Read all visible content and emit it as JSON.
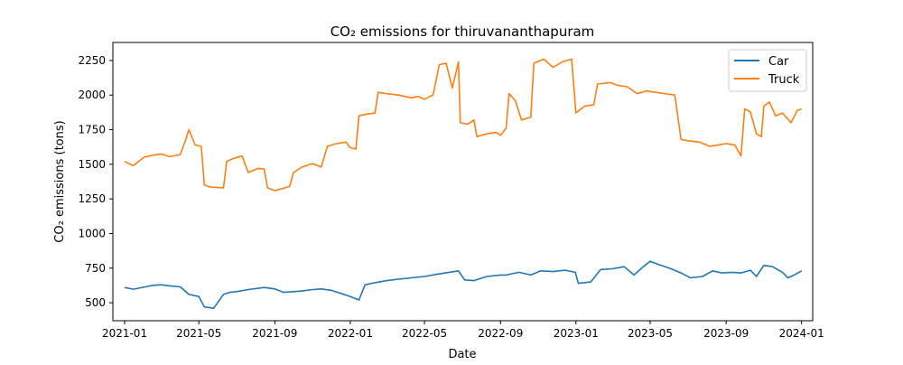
{
  "chart_data": {
    "type": "line",
    "title": "CO₂ emissions for thiruvananthapuram",
    "xlabel": "Date",
    "ylabel": "CO₂ emissions (tons)",
    "xlim": [
      "2020-12-13",
      "2024-01-19"
    ],
    "ylim": [
      370,
      2380
    ],
    "x_ticks": [
      "2021-01",
      "2021-05",
      "2021-09",
      "2022-01",
      "2022-05",
      "2022-09",
      "2023-01",
      "2023-05",
      "2023-09",
      "2024-01"
    ],
    "x_tick_dates": [
      "2021-01-01",
      "2021-05-01",
      "2021-09-01",
      "2022-01-01",
      "2022-05-01",
      "2022-09-01",
      "2023-01-01",
      "2023-05-01",
      "2023-09-01",
      "2024-01-01"
    ],
    "y_ticks": [
      500,
      750,
      1000,
      1250,
      1500,
      1750,
      2000,
      2250
    ],
    "legend_position": "top-right",
    "grid": false,
    "series": [
      {
        "name": "Car",
        "color": "#1f77b4",
        "points": [
          [
            "2021-01-01",
            610
          ],
          [
            "2021-01-15",
            598
          ],
          [
            "2021-02-01",
            612
          ],
          [
            "2021-02-15",
            625
          ],
          [
            "2021-03-01",
            630
          ],
          [
            "2021-03-15",
            622
          ],
          [
            "2021-04-01",
            615
          ],
          [
            "2021-04-15",
            560
          ],
          [
            "2021-05-01",
            545
          ],
          [
            "2021-05-10",
            470
          ],
          [
            "2021-05-25",
            460
          ],
          [
            "2021-06-10",
            560
          ],
          [
            "2021-06-20",
            575
          ],
          [
            "2021-07-01",
            580
          ],
          [
            "2021-07-20",
            595
          ],
          [
            "2021-08-15",
            610
          ],
          [
            "2021-09-01",
            600
          ],
          [
            "2021-09-15",
            575
          ],
          [
            "2021-10-01",
            580
          ],
          [
            "2021-10-15",
            585
          ],
          [
            "2021-11-01",
            595
          ],
          [
            "2021-11-15",
            600
          ],
          [
            "2021-12-01",
            590
          ],
          [
            "2021-12-15",
            570
          ],
          [
            "2022-01-01",
            545
          ],
          [
            "2022-01-15",
            520
          ],
          [
            "2022-01-25",
            630
          ],
          [
            "2022-02-10",
            645
          ],
          [
            "2022-03-01",
            660
          ],
          [
            "2022-03-20",
            670
          ],
          [
            "2022-04-10",
            680
          ],
          [
            "2022-05-01",
            690
          ],
          [
            "2022-05-20",
            705
          ],
          [
            "2022-06-10",
            720
          ],
          [
            "2022-06-25",
            730
          ],
          [
            "2022-07-05",
            665
          ],
          [
            "2022-07-20",
            660
          ],
          [
            "2022-08-10",
            690
          ],
          [
            "2022-09-01",
            700
          ],
          [
            "2022-09-10",
            700
          ],
          [
            "2022-10-01",
            720
          ],
          [
            "2022-10-20",
            700
          ],
          [
            "2022-11-05",
            730
          ],
          [
            "2022-11-25",
            725
          ],
          [
            "2022-12-15",
            735
          ],
          [
            "2022-12-31",
            720
          ],
          [
            "2023-01-05",
            640
          ],
          [
            "2023-01-25",
            650
          ],
          [
            "2023-02-10",
            740
          ],
          [
            "2023-03-01",
            745
          ],
          [
            "2023-03-20",
            760
          ],
          [
            "2023-04-05",
            700
          ],
          [
            "2023-04-20",
            760
          ],
          [
            "2023-05-01",
            800
          ],
          [
            "2023-05-15",
            775
          ],
          [
            "2023-06-01",
            750
          ],
          [
            "2023-06-20",
            715
          ],
          [
            "2023-07-05",
            680
          ],
          [
            "2023-07-25",
            690
          ],
          [
            "2023-08-10",
            730
          ],
          [
            "2023-08-25",
            715
          ],
          [
            "2023-09-10",
            720
          ],
          [
            "2023-09-25",
            715
          ],
          [
            "2023-10-10",
            735
          ],
          [
            "2023-10-20",
            690
          ],
          [
            "2023-11-01",
            770
          ],
          [
            "2023-11-15",
            760
          ],
          [
            "2023-12-01",
            720
          ],
          [
            "2023-12-10",
            680
          ],
          [
            "2023-12-20",
            700
          ],
          [
            "2024-01-01",
            730
          ]
        ]
      },
      {
        "name": "Truck",
        "color": "#ff7f0e",
        "points": [
          [
            "2021-01-01",
            1520
          ],
          [
            "2021-01-15",
            1490
          ],
          [
            "2021-02-01",
            1550
          ],
          [
            "2021-02-15",
            1565
          ],
          [
            "2021-03-01",
            1575
          ],
          [
            "2021-03-15",
            1555
          ],
          [
            "2021-04-01",
            1570
          ],
          [
            "2021-04-10",
            1680
          ],
          [
            "2021-04-15",
            1750
          ],
          [
            "2021-04-25",
            1640
          ],
          [
            "2021-05-05",
            1630
          ],
          [
            "2021-05-10",
            1350
          ],
          [
            "2021-05-20",
            1335
          ],
          [
            "2021-06-10",
            1330
          ],
          [
            "2021-06-15",
            1520
          ],
          [
            "2021-06-25",
            1540
          ],
          [
            "2021-07-10",
            1560
          ],
          [
            "2021-07-20",
            1440
          ],
          [
            "2021-08-05",
            1470
          ],
          [
            "2021-08-15",
            1465
          ],
          [
            "2021-08-20",
            1330
          ],
          [
            "2021-09-01",
            1310
          ],
          [
            "2021-09-10",
            1320
          ],
          [
            "2021-09-25",
            1340
          ],
          [
            "2021-10-01",
            1440
          ],
          [
            "2021-10-15",
            1480
          ],
          [
            "2021-11-01",
            1505
          ],
          [
            "2021-11-15",
            1480
          ],
          [
            "2021-11-25",
            1630
          ],
          [
            "2021-12-10",
            1650
          ],
          [
            "2021-12-25",
            1660
          ],
          [
            "2022-01-01",
            1620
          ],
          [
            "2022-01-10",
            1610
          ],
          [
            "2022-01-15",
            1850
          ],
          [
            "2022-01-25",
            1860
          ],
          [
            "2022-02-10",
            1870
          ],
          [
            "2022-02-15",
            2020
          ],
          [
            "2022-03-01",
            2010
          ],
          [
            "2022-03-20",
            2000
          ],
          [
            "2022-04-10",
            1980
          ],
          [
            "2022-04-20",
            1990
          ],
          [
            "2022-05-01",
            1970
          ],
          [
            "2022-05-15",
            2000
          ],
          [
            "2022-05-25",
            2220
          ],
          [
            "2022-06-05",
            2230
          ],
          [
            "2022-06-15",
            2050
          ],
          [
            "2022-06-25",
            2240
          ],
          [
            "2022-06-28",
            1800
          ],
          [
            "2022-07-10",
            1790
          ],
          [
            "2022-07-20",
            1820
          ],
          [
            "2022-07-25",
            1700
          ],
          [
            "2022-08-10",
            1720
          ],
          [
            "2022-08-25",
            1730
          ],
          [
            "2022-09-01",
            1710
          ],
          [
            "2022-09-10",
            1760
          ],
          [
            "2022-09-15",
            2010
          ],
          [
            "2022-09-25",
            1960
          ],
          [
            "2022-10-05",
            1820
          ],
          [
            "2022-10-20",
            1840
          ],
          [
            "2022-10-25",
            2230
          ],
          [
            "2022-11-10",
            2260
          ],
          [
            "2022-11-25",
            2200
          ],
          [
            "2022-12-10",
            2240
          ],
          [
            "2022-12-25",
            2260
          ],
          [
            "2023-01-01",
            1870
          ],
          [
            "2023-01-15",
            1920
          ],
          [
            "2023-01-30",
            1930
          ],
          [
            "2023-02-05",
            2080
          ],
          [
            "2023-02-25",
            2090
          ],
          [
            "2023-03-10",
            2070
          ],
          [
            "2023-03-25",
            2060
          ],
          [
            "2023-04-10",
            2010
          ],
          [
            "2023-04-25",
            2030
          ],
          [
            "2023-05-10",
            2020
          ],
          [
            "2023-05-25",
            2010
          ],
          [
            "2023-06-10",
            2000
          ],
          [
            "2023-06-20",
            1680
          ],
          [
            "2023-07-01",
            1670
          ],
          [
            "2023-07-20",
            1660
          ],
          [
            "2023-08-05",
            1630
          ],
          [
            "2023-08-20",
            1640
          ],
          [
            "2023-09-01",
            1650
          ],
          [
            "2023-09-15",
            1640
          ],
          [
            "2023-09-25",
            1560
          ],
          [
            "2023-10-01",
            1900
          ],
          [
            "2023-10-10",
            1880
          ],
          [
            "2023-10-20",
            1720
          ],
          [
            "2023-10-28",
            1700
          ],
          [
            "2023-11-01",
            1920
          ],
          [
            "2023-11-10",
            1950
          ],
          [
            "2023-11-20",
            1850
          ],
          [
            "2023-12-01",
            1870
          ],
          [
            "2023-12-15",
            1800
          ],
          [
            "2023-12-25",
            1890
          ],
          [
            "2024-01-01",
            1900
          ]
        ]
      }
    ]
  }
}
